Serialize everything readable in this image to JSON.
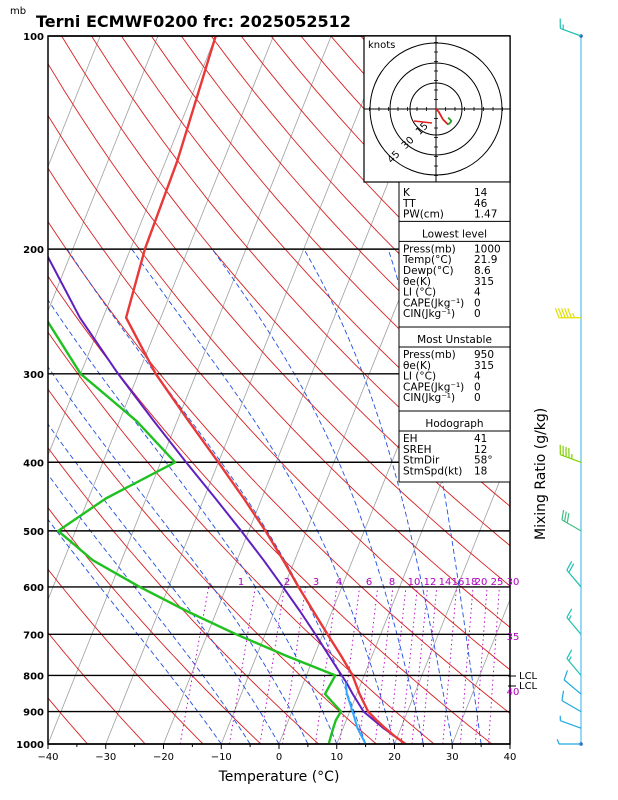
{
  "chart_data": {
    "type": "skew-t",
    "title": "Terni ECMWF0200  frc: 2025052512",
    "pressure_unit": "mb",
    "xlabel": "Temperature (°C)",
    "mixing_axis_label": "Mixing Ratio  (g/kg)",
    "xlim": [
      -40,
      40
    ],
    "x_ticks": [
      -40,
      -30,
      -20,
      -10,
      0,
      10,
      20,
      30,
      40
    ],
    "p_ticks": [
      100,
      200,
      300,
      400,
      500,
      600,
      700,
      800,
      900,
      1000
    ],
    "temperature": {
      "p": [
        1000,
        975,
        950,
        925,
        900,
        850,
        800,
        750,
        700,
        650,
        600,
        550,
        500,
        450,
        400,
        350,
        300,
        250,
        200,
        150,
        100
      ],
      "t": [
        21.9,
        19.5,
        17.3,
        15.2,
        13.2,
        10.5,
        8.0,
        4.6,
        0.8,
        -3.2,
        -7.5,
        -12.0,
        -17.1,
        -23.1,
        -30.0,
        -38.0,
        -47.0,
        -56.0,
        -57.5,
        -58.0,
        -60.0
      ]
    },
    "dewpoint": {
      "p": [
        1000,
        950,
        925,
        900,
        850,
        800,
        750,
        700,
        650,
        600,
        550,
        500,
        450,
        400,
        350,
        300,
        250,
        200,
        150,
        100
      ],
      "t": [
        8.6,
        8.3,
        8.2,
        8.5,
        4.5,
        5.0,
        -5.0,
        -15.0,
        -25.0,
        -35.0,
        -45.0,
        -53.0,
        -47.0,
        -37.5,
        -47.0,
        -60.0,
        -70.0,
        -80.0,
        -85.0,
        -90.0
      ]
    },
    "parcel": {
      "p": [
        1000,
        950,
        900,
        850,
        820,
        800,
        750,
        700,
        650,
        600,
        550,
        500,
        450,
        400,
        350,
        300,
        250,
        200,
        150,
        100
      ],
      "t": [
        21.9,
        17.0,
        12.4,
        9.3,
        7.5,
        6.1,
        2.5,
        -1.3,
        -5.5,
        -10.2,
        -15.4,
        -21.3,
        -28.0,
        -35.6,
        -44.0,
        -53.5,
        -64.0,
        -75.0,
        -88.0,
        -100.0
      ]
    },
    "mixing_ratio_labels": [
      "1",
      "2",
      "3",
      "4",
      "6",
      "8",
      "10",
      "12",
      "14",
      "16",
      "18",
      "20",
      "25",
      "30",
      "35",
      "40"
    ],
    "lcl_labels": [
      "LCL",
      "LCL"
    ],
    "hodograph": {
      "unit": "knots",
      "rings": [
        "15",
        "30",
        "45"
      ],
      "points": [
        [
          0,
          0
        ],
        [
          1.5,
          -1.5
        ],
        [
          4,
          -6
        ],
        [
          7,
          -9
        ],
        [
          9,
          -7
        ],
        [
          7,
          -5
        ]
      ]
    },
    "wind_barbs": [
      {
        "p": 1000,
        "dir": 270,
        "spd": 5
      },
      {
        "p": 950,
        "dir": 290,
        "spd": 5
      },
      {
        "p": 900,
        "dir": 300,
        "spd": 10
      },
      {
        "p": 850,
        "dir": 310,
        "spd": 10
      },
      {
        "p": 800,
        "dir": 320,
        "spd": 15
      },
      {
        "p": 700,
        "dir": 320,
        "spd": 15
      },
      {
        "p": 600,
        "dir": 320,
        "spd": 20
      },
      {
        "p": 500,
        "dir": 300,
        "spd": 30
      },
      {
        "p": 400,
        "dir": 290,
        "spd": 45
      },
      {
        "p": 250,
        "dir": 270,
        "spd": 55
      },
      {
        "p": 100,
        "dir": 290,
        "spd": 15
      }
    ]
  },
  "indices": [
    {
      "label": "K",
      "value": "14"
    },
    {
      "label": "TT",
      "value": "46"
    },
    {
      "label": "PW(cm)",
      "value": "1.47"
    }
  ],
  "lowest_level": {
    "heading": "Lowest level",
    "rows": [
      {
        "label": "Press(mb)",
        "value": "1000"
      },
      {
        "label": "Temp(°C)",
        "value": "21.9"
      },
      {
        "label": "Dewp(°C)",
        "value": "8.6"
      },
      {
        "label": "θe(K)",
        "value": "315"
      },
      {
        "label": "LI  (°C)",
        "value": "4"
      },
      {
        "label": "CAPE(Jkg⁻¹)",
        "value": "0"
      },
      {
        "label": "CIN(Jkg⁻¹)",
        "value": "0"
      }
    ]
  },
  "most_unstable": {
    "heading": "Most Unstable",
    "rows": [
      {
        "label": "Press(mb)",
        "value": "950"
      },
      {
        "label": "θe(K)",
        "value": "315"
      },
      {
        "label": "LI  (°C)",
        "value": "4"
      },
      {
        "label": "CAPE(Jkg⁻¹)",
        "value": "0"
      },
      {
        "label": "CIN(Jkg⁻¹)",
        "value": "0"
      }
    ]
  },
  "hodograph_panel": {
    "heading": "Hodograph",
    "rows": [
      {
        "label": "EH",
        "value": "41"
      },
      {
        "label": "SREH",
        "value": "12"
      },
      {
        "label": "StmDir",
        "value": "58°"
      },
      {
        "label": "StmSpd(kt)",
        "value": "18"
      }
    ]
  },
  "colors": {
    "temperature": "#e83838",
    "dewpoint": "#20c020",
    "parcel": "#6020c0",
    "dry_adiabat": "#d82020",
    "moist_adiabat": "#2050e0",
    "mixing_ratio": "#b000c0",
    "isotherm": "#a0a0a0"
  }
}
